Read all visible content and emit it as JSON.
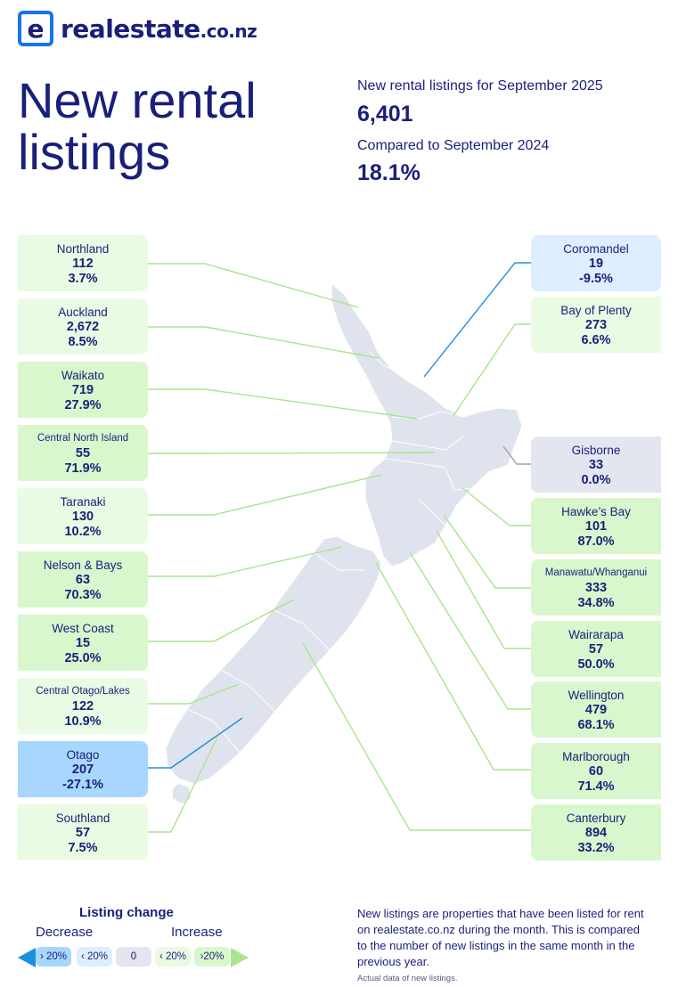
{
  "brand": {
    "name": "realestate",
    "tld": ".co.nz"
  },
  "title": "New rental listings",
  "stats": {
    "listings_label": "New rental listings for September 2025",
    "listings_value": "6,401",
    "compare_label": "Compared to September 2024",
    "compare_value": "18.1%"
  },
  "regions_left": [
    {
      "name": "Northland",
      "count": "112",
      "change": "3.7%"
    },
    {
      "name": "Auckland",
      "count": "2,672",
      "change": "8.5%"
    },
    {
      "name": "Waikato",
      "count": "719",
      "change": "27.9%"
    },
    {
      "name": "Central North Island",
      "count": "55",
      "change": "71.9%"
    },
    {
      "name": "Taranaki",
      "count": "130",
      "change": "10.2%"
    },
    {
      "name": "Nelson & Bays",
      "count": "63",
      "change": "70.3%"
    },
    {
      "name": "West Coast",
      "count": "15",
      "change": "25.0%"
    },
    {
      "name": "Central Otago/Lakes",
      "count": "122",
      "change": "10.9%"
    },
    {
      "name": "Otago",
      "count": "207",
      "change": "-27.1%"
    },
    {
      "name": "Southland",
      "count": "57",
      "change": "7.5%"
    }
  ],
  "regions_right": [
    {
      "name": "Coromandel",
      "count": "19",
      "change": "-9.5%"
    },
    {
      "name": "Bay of Plenty",
      "count": "273",
      "change": "6.6%"
    },
    {
      "name": "Gisborne",
      "count": "33",
      "change": "0.0%"
    },
    {
      "name": "Hawke’s Bay",
      "count": "101",
      "change": "87.0%"
    },
    {
      "name": "Manawatu/Whanganui",
      "count": "333",
      "change": "34.8%"
    },
    {
      "name": "Wairarapa",
      "count": "57",
      "change": "50.0%"
    },
    {
      "name": "Wellington",
      "count": "479",
      "change": "68.1%"
    },
    {
      "name": "Marlborough",
      "count": "60",
      "change": "71.4%"
    },
    {
      "name": "Canterbury",
      "count": "894",
      "change": "33.2%"
    }
  ],
  "legend": {
    "title": "Listing change",
    "decrease": "Decrease",
    "increase": "Increase",
    "chips": [
      "› 20%",
      "‹ 20%",
      "0",
      "‹ 20%",
      "›20%"
    ]
  },
  "note": "New listings are properties that have been listed for rent on realestate.co.nz during the month. This is compared to the number of new listings in the same month in the previous year.",
  "footnote": "Actual data of new listings.",
  "colors": {
    "navy": "#1a1f7a",
    "increase": "#eafbe3",
    "big_increase": "#d9f7cd",
    "decrease": "#dceeff",
    "big_decrease": "#a7d6ff",
    "no_change": "#e3e6ee",
    "map": "#dfe3ee",
    "increase_line": "#a8e58c",
    "decrease_line": "#1e8fe0"
  }
}
